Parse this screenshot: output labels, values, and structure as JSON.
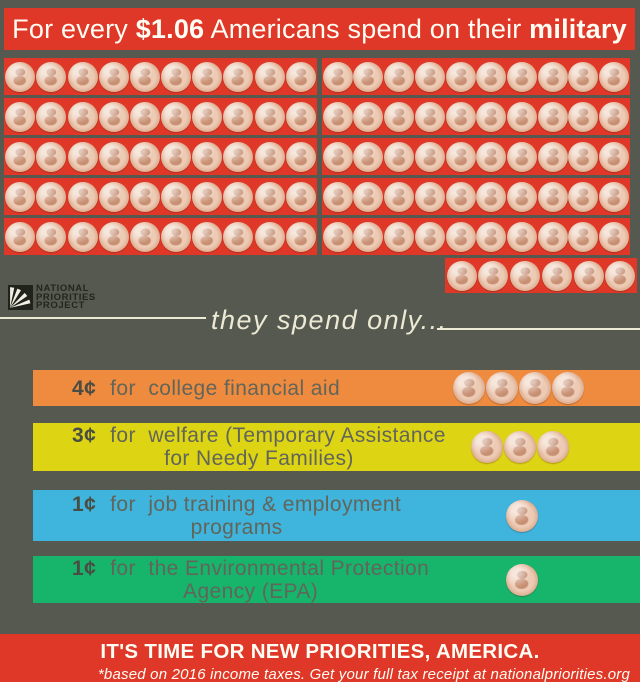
{
  "colors": {
    "red": "#e03828",
    "background_gray": "#565950",
    "orange": "#ef8b3e",
    "yellow": "#ddd414",
    "blue": "#3fb4dc",
    "green": "#17b56c",
    "cream": "#ece9d4",
    "penny_copper": "#e0b094",
    "bar_text_gray": "#62655a"
  },
  "banner": {
    "prefix": "For every ",
    "amount": "$1.06",
    "middle": " Americans spend on their ",
    "emphasis": "military"
  },
  "logo": {
    "line1": "NATIONAL",
    "line2": "PRIORITIES",
    "line3": "PROJECT"
  },
  "subtitle": "they spend only...",
  "penny_grid": {
    "total_pennies": 106,
    "left_rows": [
      10,
      10,
      10,
      10,
      10
    ],
    "right_rows": [
      10,
      10,
      10,
      10,
      10
    ],
    "overflow_row": 6
  },
  "bars": [
    {
      "amount": "4¢",
      "line1": "for  college financial aid",
      "line2": "",
      "pennies": 4
    },
    {
      "amount": "3¢",
      "line1": "for  welfare (Temporary Assistance",
      "line2": "for Needy Families)",
      "pennies": 3
    },
    {
      "amount": "1¢",
      "line1": "for  job training & employment",
      "line2": "programs",
      "pennies": 1
    },
    {
      "amount": "1¢",
      "line1": "for  the Environmental Protection",
      "line2": "Agency (EPA)",
      "pennies": 1
    }
  ],
  "footer": {
    "headline": "IT'S TIME FOR NEW PRIORITIES, AMERICA.",
    "note": "*based on 2016 income taxes. Get your full tax receipt at nationalpriorities.org"
  },
  "chart_data": {
    "type": "bar",
    "categories": [
      "Military",
      "College financial aid",
      "Welfare (Temporary Assistance for Needy Families)",
      "Job training & employment programs",
      "Environmental Protection Agency (EPA)"
    ],
    "values": [
      106,
      4,
      3,
      1,
      1
    ],
    "unit": "cents per $1.06 of income tax",
    "title": "For every $1.06 Americans spend on their military, they spend only...",
    "annotations": [
      "IT'S TIME FOR NEW PRIORITIES, AMERICA.",
      "*based on 2016 income taxes. Get your full tax receipt at nationalpriorities.org"
    ],
    "legend": "pennies pictograph; 1 penny = 1 cent"
  }
}
